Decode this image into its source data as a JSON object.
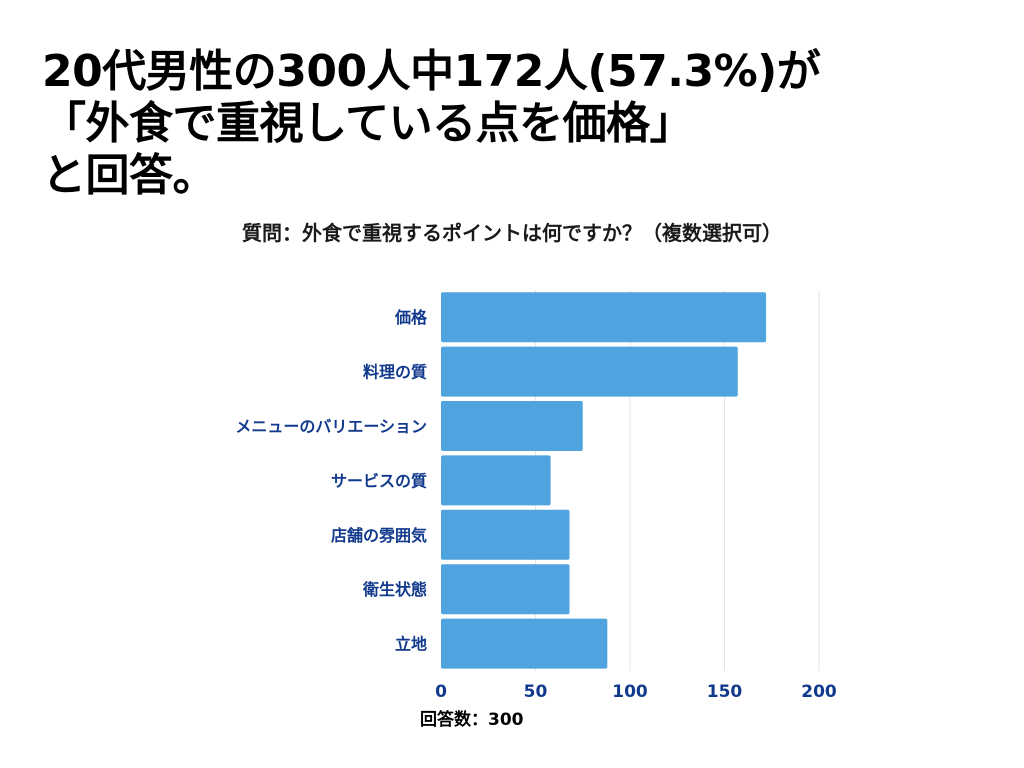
{
  "headline": {
    "lines": [
      "20代男性の300人中172人(57.3%)が",
      "「外食で重視している点を価格」",
      "と回答。"
    ]
  },
  "question": "質問：外食で重視するポイントは何ですか？（複数選択可）",
  "response_count": "回答数：300",
  "colors": {
    "bar": "#4fa3df",
    "label": "#123a8c",
    "grid": "#e3e3e3"
  },
  "chart_data": {
    "type": "bar",
    "orientation": "horizontal",
    "categories": [
      "価格",
      "料理の質",
      "メニューのバリエーション",
      "サービスの質",
      "店舗の雰囲気",
      "衛生状態",
      "立地"
    ],
    "values": [
      172,
      157,
      75,
      58,
      68,
      68,
      88
    ],
    "xlim": [
      0,
      200
    ],
    "xticks": [
      0,
      50,
      100,
      150,
      200
    ],
    "grid": true,
    "legend": "none"
  }
}
